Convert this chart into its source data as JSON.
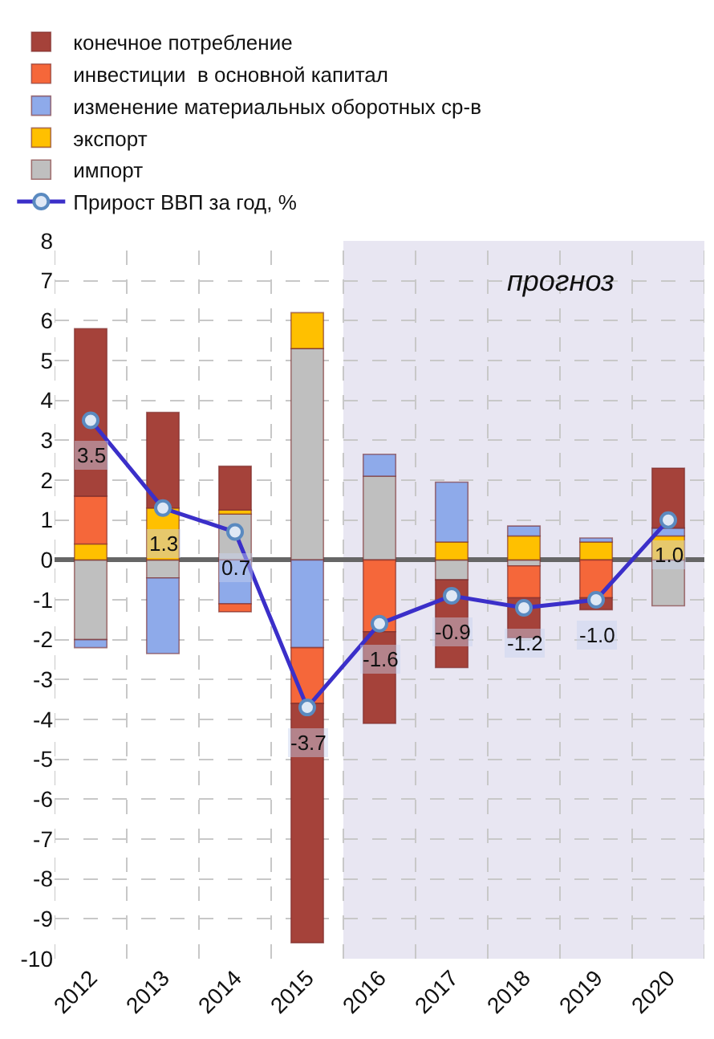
{
  "chart_data": {
    "type": "bar",
    "stacked": true,
    "categories": [
      "2012",
      "2013",
      "2014",
      "2015",
      "2016",
      "2017",
      "2018",
      "2019",
      "2020"
    ],
    "series": [
      {
        "name": "импорт",
        "color": "#bfbfbf",
        "values": [
          -2.0,
          -0.45,
          1.15,
          5.3,
          2.1,
          -0.5,
          -0.15,
          null,
          -1.15
        ]
      },
      {
        "name": "экспорт",
        "color": "#ffc000",
        "values": [
          0.4,
          1.3,
          0.1,
          0.9,
          null,
          0.45,
          0.6,
          0.45,
          0.6
        ]
      },
      {
        "name": "изменение материальных оборотных ср-в",
        "color": "#8eaaea",
        "values": [
          -0.2,
          -1.9,
          -1.1,
          -2.2,
          0.55,
          1.5,
          0.25,
          0.1,
          0.2
        ]
      },
      {
        "name": "инвестиции  в основной капитал",
        "color": "#f5673a",
        "values": [
          1.2,
          null,
          -0.2,
          -1.4,
          -1.8,
          null,
          -0.8,
          -0.95,
          null
        ]
      },
      {
        "name": "конечное потребление",
        "color": "#a5423a",
        "values": [
          4.2,
          2.4,
          1.1,
          -6.0,
          -2.3,
          -2.2,
          -1.0,
          -0.3,
          1.5
        ]
      },
      {
        "name": "Прирост ВВП за год, %",
        "type": "line",
        "color": "#3b2fc9",
        "values": [
          3.5,
          1.3,
          0.7,
          -3.7,
          -1.6,
          -0.9,
          -1.2,
          -1.0,
          1.0
        ],
        "value_labels": [
          "3.5",
          "1.3",
          "0.7",
          "-3.7",
          "-1.6",
          "-0.9",
          "-1.2",
          "-1.0",
          "1.0"
        ]
      }
    ],
    "ylim": [
      -10,
      8
    ],
    "yticks": [
      -10,
      -9,
      -8,
      -7,
      -6,
      -5,
      -4,
      -3,
      -2,
      -1,
      0,
      1,
      2,
      3,
      4,
      5,
      6,
      7,
      8
    ],
    "grid": true,
    "legend": "top left",
    "marker": "circle",
    "line_style": "solid",
    "bands": [
      {
        "axis": "x",
        "from": "2016",
        "to": "2020",
        "label": "прогноз",
        "color": "#e8e6f2"
      }
    ]
  }
}
